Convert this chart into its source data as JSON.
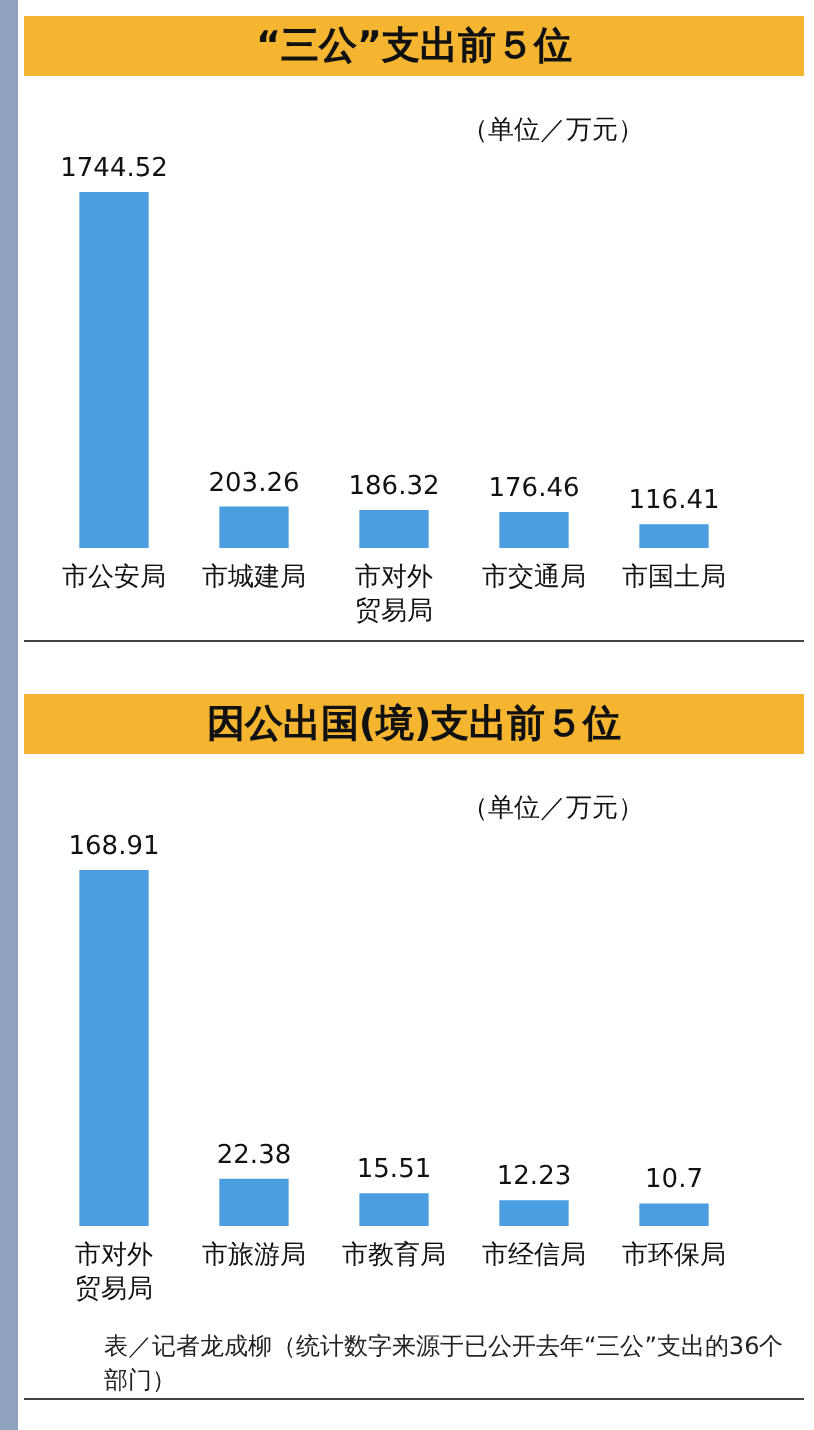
{
  "chart_data": [
    {
      "type": "bar",
      "title": "“三公”支出前５位",
      "subtitle": "（单位／万元）",
      "categories": [
        "市公安局",
        "市城建局",
        "市对外贸易局",
        "市交通局",
        "市国土局"
      ],
      "values": [
        1744.52,
        203.26,
        186.32,
        176.46,
        116.41
      ],
      "color": "#4a9ee0",
      "data_labels": true
    },
    {
      "type": "bar",
      "title": "因公出国(境)支出前５位",
      "subtitle": "（单位／万元）",
      "categories": [
        "市对外贸易局",
        "市旅游局",
        "市教育局",
        "市经信局",
        "市环保局"
      ],
      "values": [
        168.91,
        22.38,
        15.51,
        12.23,
        10.7
      ],
      "color": "#4a9ee0",
      "data_labels": true,
      "annotations": [
        "表／记者龙成柳（统计数字来源于已公开去年“三公”支出的36个部门）"
      ]
    }
  ]
}
